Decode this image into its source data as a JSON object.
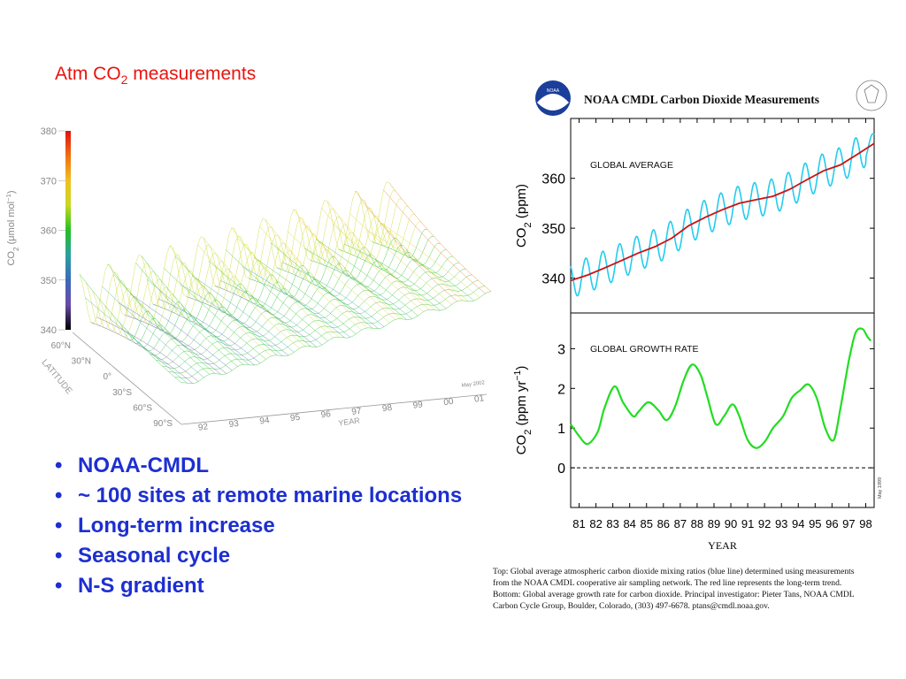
{
  "slide": {
    "title_main": "Atm CO",
    "title_sub": "2",
    "title_tail": " measurements",
    "bullets": [
      "NOAA-CMDL",
      "~ 100 sites at remote marine locations",
      "Long-term increase",
      "Seasonal cycle",
      "N-S gradient"
    ]
  },
  "surface_plot": {
    "ylabel": "CO2 (µmol mol-1)",
    "ylabel_parts": [
      "CO",
      "2",
      " (μmol mol",
      "−1",
      ")"
    ],
    "zticks": [
      "340",
      "350",
      "360",
      "370",
      "380"
    ],
    "zlim": [
      340,
      380
    ],
    "latitude_label": "LATITUDE",
    "latitude_ticks": [
      "60°N",
      "30°N",
      "0°",
      "30°S",
      "60°S",
      "90°S"
    ],
    "year_label": "YEAR",
    "year_ticks": [
      "92",
      "93",
      "94",
      "95",
      "96",
      "97",
      "98",
      "99",
      "00",
      "01"
    ],
    "stamp": "May 2002",
    "colorscale": [
      "#000000",
      "#6a4aa8",
      "#3a6ab8",
      "#2aa0a0",
      "#22c022",
      "#c8d820",
      "#f0c020",
      "#f07010",
      "#e01010"
    ]
  },
  "noaa_panel": {
    "header": "NOAA CMDL Carbon Dioxide Measurements",
    "side_stamp": "May 1999",
    "xlabel": "YEAR"
  },
  "chart_data": [
    {
      "type": "line",
      "title": "GLOBAL AVERAGE",
      "ylabel": "CO2 (ppm)",
      "ylabel_parts": [
        "CO",
        "2",
        " (ppm)"
      ],
      "yticks": [
        340,
        350,
        360
      ],
      "ylim": [
        333,
        372
      ],
      "xlim": [
        1981,
        1999
      ],
      "x": [
        1981,
        1982,
        1983,
        1984,
        1985,
        1986,
        1987,
        1988,
        1989,
        1990,
        1991,
        1992,
        1993,
        1994,
        1995,
        1996,
        1997,
        1998,
        1999
      ],
      "series": [
        {
          "name": "",
          "color": "#cc1111",
          "values": [
            339.5,
            340.6,
            342.0,
            343.5,
            345.0,
            346.3,
            348.0,
            350.5,
            352.2,
            353.7,
            355.0,
            355.7,
            356.4,
            357.8,
            359.7,
            361.5,
            362.7,
            364.8,
            367.0
          ]
        },
        {
          "name": "",
          "color": "#22ccee",
          "seasonal_amplitude": 3.5
        }
      ],
      "grid": false
    },
    {
      "type": "line",
      "title": "GLOBAL GROWTH RATE",
      "ylabel": "CO2 (ppm yr-1)",
      "ylabel_parts": [
        "CO",
        "2",
        " (ppm  yr",
        "−1",
        ")"
      ],
      "yticks": [
        0,
        1,
        2,
        3
      ],
      "ylim": [
        -1,
        3.9
      ],
      "xlim": [
        1981,
        1999
      ],
      "xticks": [
        "81",
        "82",
        "83",
        "84",
        "85",
        "86",
        "87",
        "88",
        "89",
        "90",
        "91",
        "92",
        "93",
        "94",
        "95",
        "96",
        "97",
        "98"
      ],
      "x": [
        1981.0,
        1981.5,
        1982.0,
        1982.6,
        1983.0,
        1983.6,
        1984.1,
        1984.7,
        1985.0,
        1985.6,
        1986.2,
        1986.7,
        1987.2,
        1987.7,
        1988.2,
        1988.7,
        1989.1,
        1989.6,
        1990.1,
        1990.6,
        1991.0,
        1991.5,
        1992.0,
        1992.5,
        1993.0,
        1993.6,
        1994.1,
        1994.6,
        1995.1,
        1995.6,
        1996.1,
        1996.6,
        1997.0,
        1997.5,
        1997.9,
        1998.3,
        1998.6,
        1998.8
      ],
      "series": [
        {
          "name": "",
          "color": "#22dd22",
          "values": [
            1.1,
            0.8,
            0.6,
            0.9,
            1.5,
            2.05,
            1.65,
            1.3,
            1.4,
            1.65,
            1.45,
            1.2,
            1.55,
            2.2,
            2.6,
            2.35,
            1.8,
            1.1,
            1.3,
            1.6,
            1.3,
            0.7,
            0.5,
            0.65,
            1.0,
            1.3,
            1.75,
            1.95,
            2.1,
            1.75,
            1.0,
            0.7,
            1.5,
            2.7,
            3.4,
            3.5,
            3.3,
            3.2
          ]
        }
      ],
      "reference_line": 0,
      "grid": false
    }
  ],
  "caption": {
    "lines": [
      "Top:  Global average atmospheric carbon dioxide mixing ratios (blue line) determined using measurements",
      "from the NOAA CMDL cooperative air sampling network.  The red line represents the long-term trend.",
      "Bottom:  Global average growth rate for carbon dioxide.  Principal investigator:  Pieter Tans, NOAA CMDL",
      "Carbon Cycle Group, Boulder, Colorado, (303) 497-6678.  ptans@cmdl.noaa.gov."
    ]
  }
}
